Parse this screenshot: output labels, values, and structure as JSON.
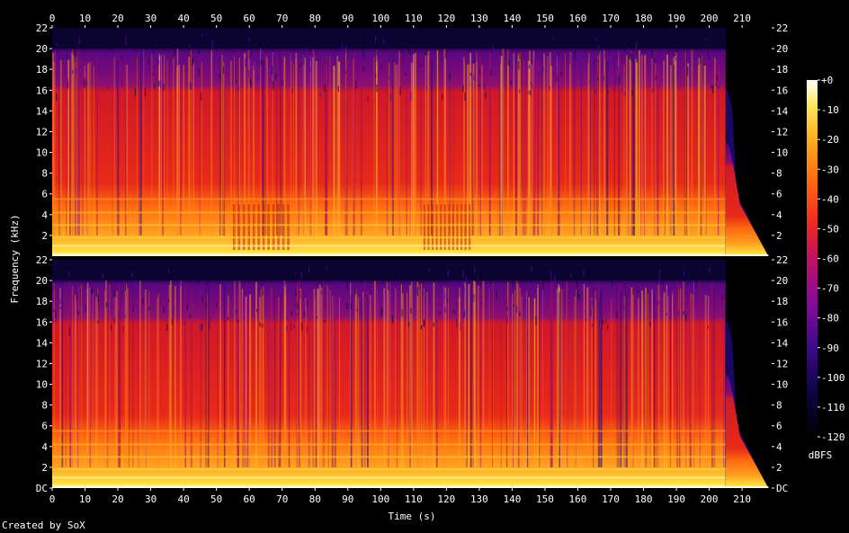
{
  "chart_data": {
    "type": "heatmap",
    "title": "",
    "xlabel": "Time (s)",
    "ylabel": "Frequency (kHz)",
    "x_range_s": [
      0,
      219
    ],
    "x_ticks": [
      "0",
      "10",
      "20",
      "30",
      "40",
      "50",
      "60",
      "70",
      "80",
      "90",
      "100",
      "110",
      "120",
      "130",
      "140",
      "150",
      "160",
      "170",
      "180",
      "190",
      "200",
      "210"
    ],
    "x_tick_values": [
      0,
      10,
      20,
      30,
      40,
      50,
      60,
      70,
      80,
      90,
      100,
      110,
      120,
      130,
      140,
      150,
      160,
      170,
      180,
      190,
      200,
      210
    ],
    "y_range_khz": [
      0,
      22
    ],
    "y_ticks_top": [
      "2",
      "4",
      "6",
      "8",
      "10",
      "12",
      "14",
      "16",
      "18",
      "20",
      "22"
    ],
    "y_ticks_bottom": [
      "DC",
      "2",
      "4",
      "6",
      "8",
      "10",
      "12",
      "14",
      "16",
      "18",
      "20",
      "22"
    ],
    "y_tick_values_top": [
      2,
      4,
      6,
      8,
      10,
      12,
      14,
      16,
      18,
      20,
      22
    ],
    "y_tick_values_bottom": [
      0,
      2,
      4,
      6,
      8,
      10,
      12,
      14,
      16,
      18,
      20,
      22
    ],
    "channels": 2,
    "colorbar": {
      "label": "dBFS",
      "ticks": [
        "+0",
        "-10",
        "-20",
        "-30",
        "-40",
        "-50",
        "-60",
        "-70",
        "-80",
        "-90",
        "-100",
        "-110",
        "-120"
      ],
      "values": [
        0,
        -10,
        -20,
        -30,
        -40,
        -50,
        -60,
        -70,
        -80,
        -90,
        -100,
        -110,
        -120
      ],
      "range": [
        -120,
        0
      ]
    },
    "music_end_s": 205,
    "fade_end_s": 218,
    "lowpass_cutoff_khz": 20,
    "tail_cutoff_khz": 16,
    "quiet_regions_s": [
      [
        55,
        73
      ],
      [
        113,
        128
      ]
    ]
  },
  "footer": "Created by SoX"
}
